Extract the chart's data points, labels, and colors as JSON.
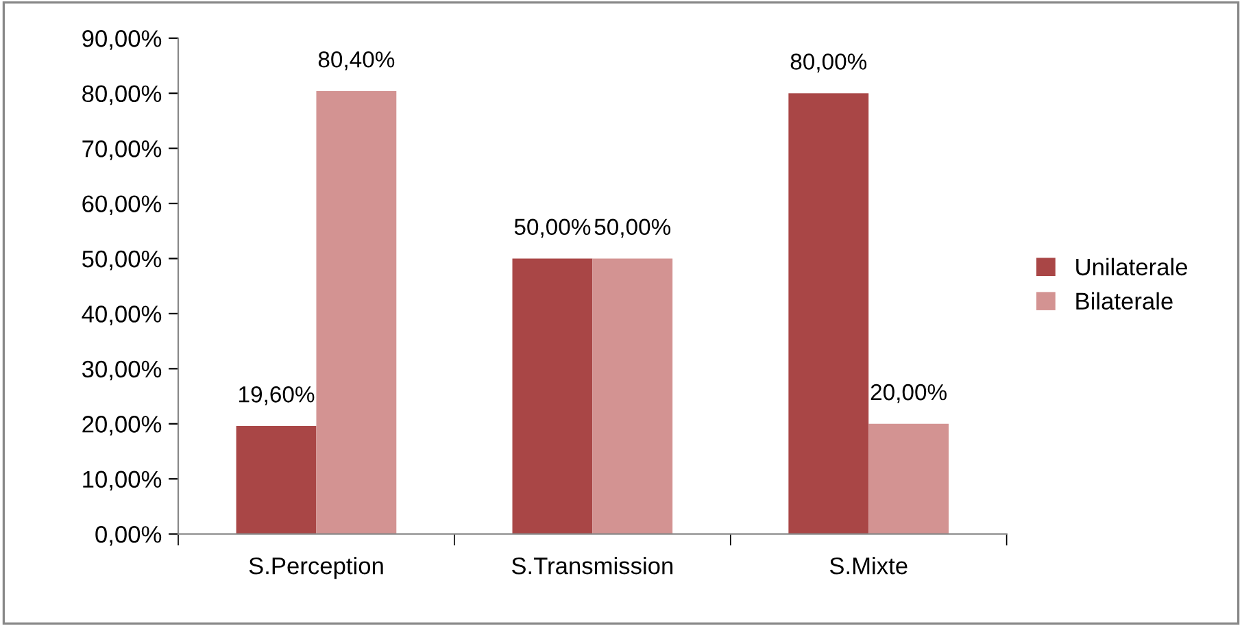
{
  "chart_data": {
    "type": "bar",
    "categories": [
      "S.Perception",
      "S.Transmission",
      "S.Mixte"
    ],
    "series": [
      {
        "name": "Unilaterale",
        "color": "#a94646",
        "values": [
          19.6,
          50,
          80
        ],
        "value_labels": [
          "19,60%",
          "50,00%",
          "80,00%"
        ]
      },
      {
        "name": "Bilaterale",
        "color": "#d39392",
        "values": [
          80.4,
          50,
          20
        ],
        "value_labels": [
          "80,40%",
          "50,00%",
          "20,00%"
        ]
      }
    ],
    "ylim": [
      0,
      90
    ],
    "yticks": [
      {
        "value": 0,
        "label": "0,00%"
      },
      {
        "value": 10,
        "label": "10,00%"
      },
      {
        "value": 20,
        "label": "20,00%"
      },
      {
        "value": 30,
        "label": "30,00%"
      },
      {
        "value": 40,
        "label": "40,00%"
      },
      {
        "value": 50,
        "label": "50,00%"
      },
      {
        "value": 60,
        "label": "60,00%"
      },
      {
        "value": 70,
        "label": "70,00%"
      },
      {
        "value": 80,
        "label": "80,00%"
      },
      {
        "value": 90,
        "label": "90,00%"
      }
    ],
    "grid": false,
    "legend": "right"
  }
}
